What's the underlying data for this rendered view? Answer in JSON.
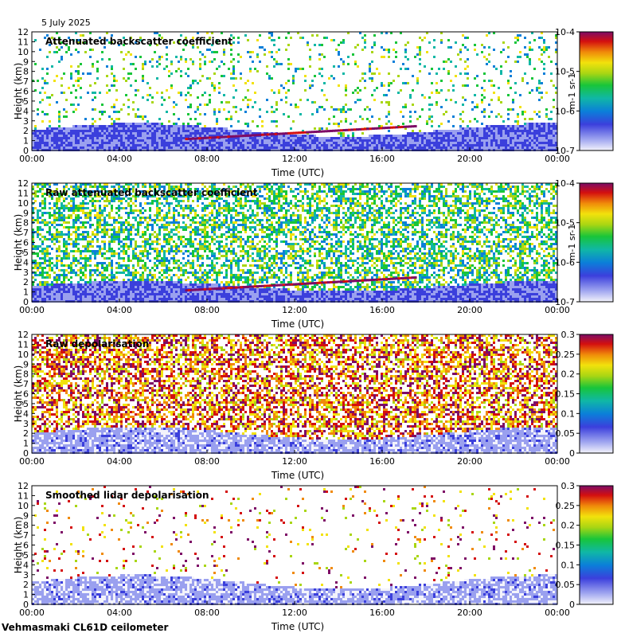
{
  "date": "5 July 2025",
  "footer": "Vehmasmaki CL61D ceilometer",
  "colors": {
    "background": "#ffffff",
    "cmap": [
      "#f3f3fb",
      "#9aa0ef",
      "#3b3fdc",
      "#0b7fd9",
      "#10b7a6",
      "#18c53a",
      "#a9d613",
      "#f2e20c",
      "#f08a0a",
      "#d40f0f",
      "#7d0c66"
    ]
  },
  "chart_data": [
    {
      "type": "heatmap",
      "title": "Attenuated backscatter coefficient",
      "xlabel": "Time (UTC)",
      "ylabel": "Height (km)",
      "x_ticks": [
        "00:00",
        "04:00",
        "08:00",
        "12:00",
        "16:00",
        "20:00",
        "00:00"
      ],
      "y_ticks": [
        0,
        1,
        2,
        3,
        4,
        5,
        6,
        7,
        8,
        9,
        10,
        11,
        12
      ],
      "ylim": [
        0,
        12
      ],
      "colorbar": {
        "scale": "log",
        "range": [
          1e-07,
          0.0001
        ],
        "labels": [
          "10-7",
          "10-6",
          "10-5",
          "10-4"
        ],
        "unit": "m-1 sr-1"
      },
      "features": {
        "boundary_layer_top_km": 2.6,
        "cloud_base_km": [
          1.2,
          2.5
        ],
        "cloud_time_range_utc": [
          "07:00",
          "17:30"
        ]
      }
    },
    {
      "type": "heatmap",
      "title": "Raw attenuated backscatter coefficient",
      "xlabel": "Time (UTC)",
      "ylabel": "Height (km)",
      "x_ticks": [
        "00:00",
        "04:00",
        "08:00",
        "12:00",
        "16:00",
        "20:00",
        "00:00"
      ],
      "y_ticks": [
        0,
        1,
        2,
        3,
        4,
        5,
        6,
        7,
        8,
        9,
        10,
        11,
        12
      ],
      "ylim": [
        0,
        12
      ],
      "colorbar": {
        "scale": "log",
        "range": [
          1e-07,
          0.0001
        ],
        "labels": [
          "10-7",
          "10-6",
          "10-5",
          "10-4"
        ],
        "unit": "m-1 sr-1"
      },
      "features": {
        "boundary_layer_top_km": 2.0,
        "cloud_base_km": [
          1.2,
          2.5
        ],
        "cloud_time_range_utc": [
          "07:00",
          "17:30"
        ]
      }
    },
    {
      "type": "heatmap",
      "title": "Raw depolarisation",
      "xlabel": "Time (UTC)",
      "ylabel": "Height (km)",
      "x_ticks": [
        "00:00",
        "04:00",
        "08:00",
        "12:00",
        "16:00",
        "20:00",
        "00:00"
      ],
      "y_ticks": [
        0,
        1,
        2,
        3,
        4,
        5,
        6,
        7,
        8,
        9,
        10,
        11,
        12
      ],
      "ylim": [
        0,
        12
      ],
      "colorbar": {
        "scale": "linear",
        "range": [
          0,
          0.3
        ],
        "labels": [
          "0",
          "0.05",
          "0.1",
          "0.15",
          "0.2",
          "0.25",
          "0.3"
        ],
        "unit": ""
      },
      "features": {
        "boundary_layer_top_km": 2.5
      }
    },
    {
      "type": "heatmap",
      "title": "Smoothed lidar depolarisation",
      "xlabel": "Time (UTC)",
      "ylabel": "Height (km)",
      "x_ticks": [
        "00:00",
        "04:00",
        "08:00",
        "12:00",
        "16:00",
        "20:00",
        "00:00"
      ],
      "y_ticks": [
        0,
        1,
        2,
        3,
        4,
        5,
        6,
        7,
        8,
        9,
        10,
        11,
        12
      ],
      "ylim": [
        0,
        12
      ],
      "colorbar": {
        "scale": "linear",
        "range": [
          0,
          0.3
        ],
        "labels": [
          "0",
          "0.05",
          "0.1",
          "0.15",
          "0.2",
          "0.25",
          "0.3"
        ],
        "unit": ""
      },
      "features": {
        "boundary_layer_top_km": 2.8
      }
    }
  ]
}
